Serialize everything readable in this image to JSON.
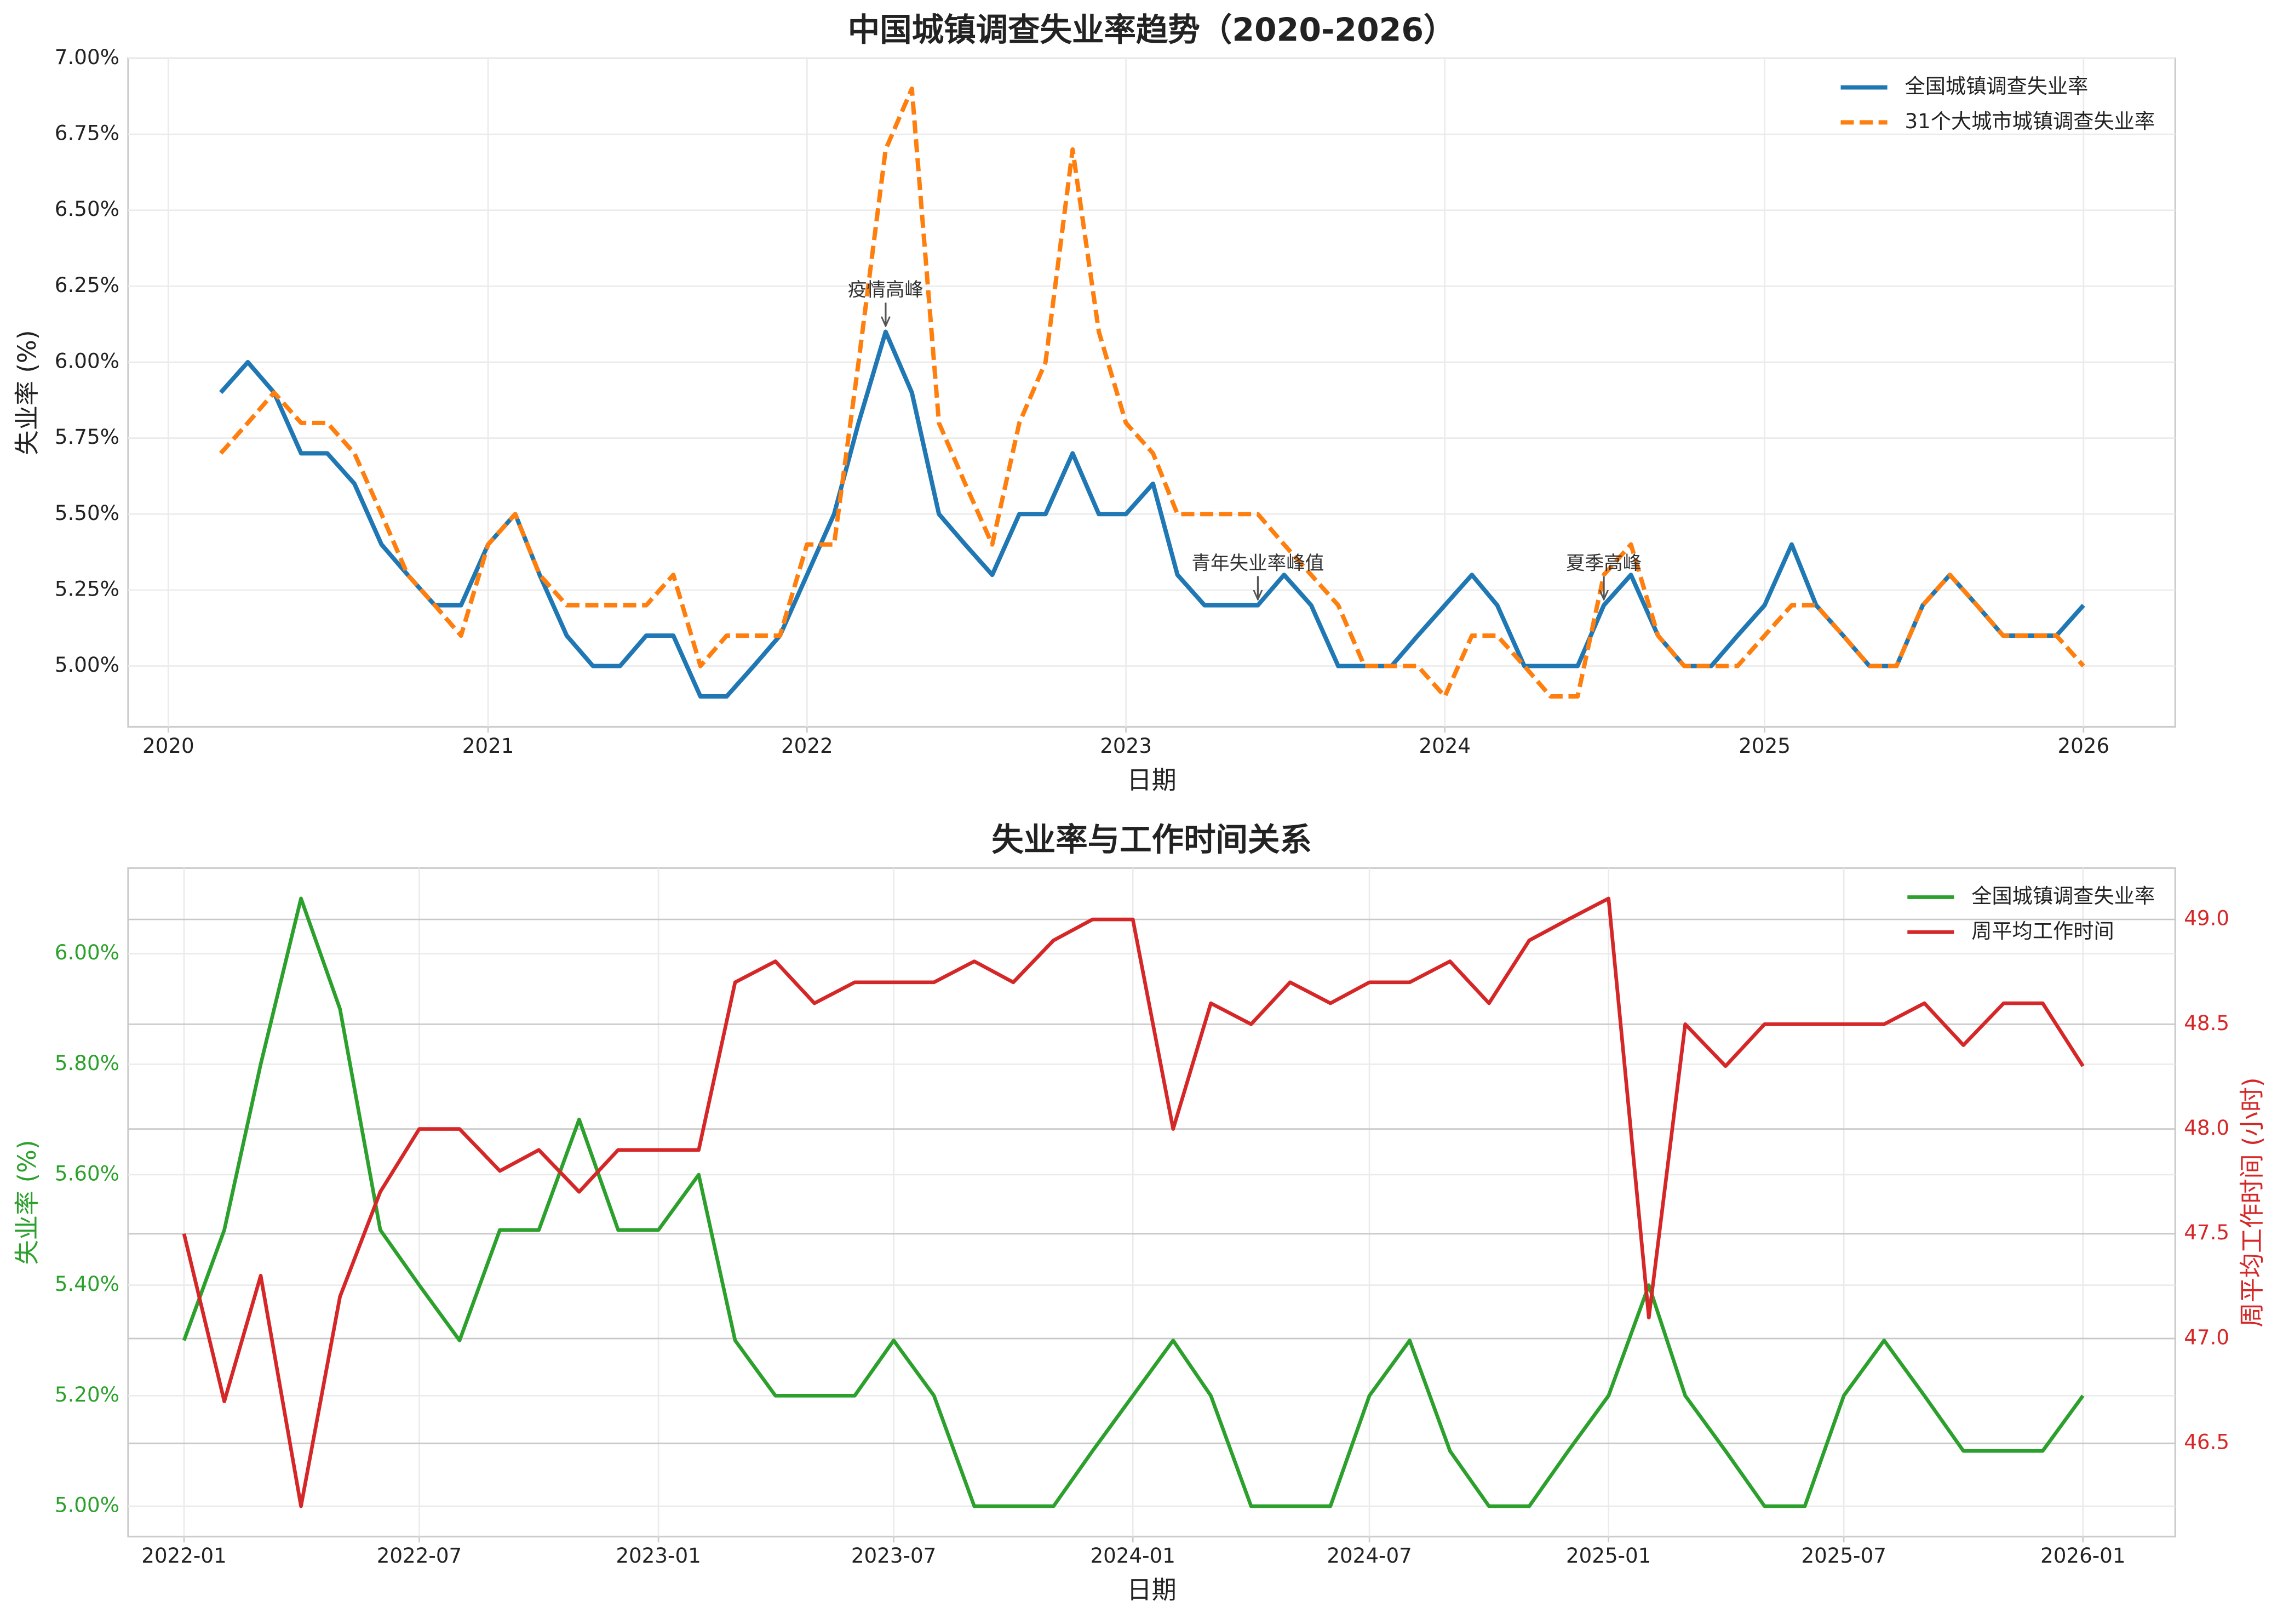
{
  "chart_data": [
    {
      "type": "line",
      "title": "中国城镇调查失业率趋势（2020-2026）",
      "xlabel": "日期",
      "ylabel": "失业率 (%)",
      "x": [
        "2020-03",
        "2020-04",
        "2020-05",
        "2020-06",
        "2020-07",
        "2020-08",
        "2020-09",
        "2020-10",
        "2020-11",
        "2020-12",
        "2021-01",
        "2021-02",
        "2021-03",
        "2021-04",
        "2021-05",
        "2021-06",
        "2021-07",
        "2021-08",
        "2021-09",
        "2021-10",
        "2021-11",
        "2021-12",
        "2022-01",
        "2022-02",
        "2022-03",
        "2022-04",
        "2022-05",
        "2022-06",
        "2022-07",
        "2022-08",
        "2022-09",
        "2022-10",
        "2022-11",
        "2022-12",
        "2023-01",
        "2023-02",
        "2023-03",
        "2023-04",
        "2023-05",
        "2023-06",
        "2023-07",
        "2023-08",
        "2023-09",
        "2023-10",
        "2023-11",
        "2023-12",
        "2024-01",
        "2024-02",
        "2024-03",
        "2024-04",
        "2024-05",
        "2024-06",
        "2024-07",
        "2024-08",
        "2024-09",
        "2024-10",
        "2024-11",
        "2024-12",
        "2025-01",
        "2025-02",
        "2025-03",
        "2025-04",
        "2025-05",
        "2025-06",
        "2025-07",
        "2025-08",
        "2025-09",
        "2025-10",
        "2025-11",
        "2025-12",
        "2026-01"
      ],
      "series": [
        {
          "name": "全国城镇调查失业率",
          "color": "#1f77b4",
          "linestyle": "solid",
          "values": [
            5.9,
            6.0,
            5.9,
            5.7,
            5.7,
            5.6,
            5.4,
            5.3,
            5.2,
            5.2,
            5.4,
            5.5,
            5.3,
            5.1,
            5.0,
            5.0,
            5.1,
            5.1,
            4.9,
            4.9,
            5.0,
            5.1,
            5.3,
            5.5,
            5.8,
            6.1,
            5.9,
            5.5,
            5.4,
            5.3,
            5.5,
            5.5,
            5.7,
            5.5,
            5.5,
            5.6,
            5.3,
            5.2,
            5.2,
            5.2,
            5.3,
            5.2,
            5.0,
            5.0,
            5.0,
            5.1,
            5.2,
            5.3,
            5.2,
            5.0,
            5.0,
            5.0,
            5.2,
            5.3,
            5.1,
            5.0,
            5.0,
            5.1,
            5.2,
            5.4,
            5.2,
            5.1,
            5.0,
            5.0,
            5.2,
            5.3,
            5.2,
            5.1,
            5.1,
            5.1,
            5.2
          ]
        },
        {
          "name": "31个大城市城镇调查失业率",
          "color": "#ff7f0e",
          "linestyle": "dashed",
          "values": [
            5.7,
            5.8,
            5.9,
            5.8,
            5.8,
            5.7,
            5.5,
            5.3,
            5.2,
            5.1,
            5.4,
            5.5,
            5.3,
            5.2,
            5.2,
            5.2,
            5.2,
            5.3,
            5.0,
            5.1,
            5.1,
            5.1,
            5.4,
            5.4,
            6.0,
            6.7,
            6.9,
            5.8,
            5.6,
            5.4,
            5.8,
            6.0,
            6.7,
            6.1,
            5.8,
            5.7,
            5.5,
            5.5,
            5.5,
            5.5,
            5.4,
            5.3,
            5.2,
            5.0,
            5.0,
            5.0,
            4.9,
            5.1,
            5.1,
            5.0,
            4.9,
            4.9,
            5.3,
            5.4,
            5.1,
            5.0,
            5.0,
            5.0,
            5.1,
            5.2,
            5.2,
            5.1,
            5.0,
            5.0,
            5.2,
            5.3,
            5.2,
            5.1,
            5.1,
            5.1,
            5.0
          ]
        }
      ],
      "xlim": [
        "2019-11-16",
        "2026-04-16"
      ],
      "xticks": [
        {
          "value": "2020-01",
          "label": "2020"
        },
        {
          "value": "2021-01",
          "label": "2021"
        },
        {
          "value": "2022-01",
          "label": "2022"
        },
        {
          "value": "2023-01",
          "label": "2023"
        },
        {
          "value": "2024-01",
          "label": "2024"
        },
        {
          "value": "2025-01",
          "label": "2025"
        },
        {
          "value": "2026-01",
          "label": "2026"
        }
      ],
      "ylim": [
        4.8,
        7.0
      ],
      "yticks": [
        {
          "value": 5.0,
          "label": "5.00%"
        },
        {
          "value": 5.25,
          "label": "5.25%"
        },
        {
          "value": 5.5,
          "label": "5.50%"
        },
        {
          "value": 5.75,
          "label": "5.75%"
        },
        {
          "value": 6.0,
          "label": "6.00%"
        },
        {
          "value": 6.25,
          "label": "6.25%"
        },
        {
          "value": 6.5,
          "label": "6.50%"
        },
        {
          "value": 6.75,
          "label": "6.75%"
        },
        {
          "value": 7.0,
          "label": "7.00%"
        }
      ],
      "grid": true,
      "legend": "upper right",
      "annotations": [
        {
          "text": "疫情高峰",
          "x": "2022-04",
          "y": 6.1
        },
        {
          "text": "青年失业率峰值",
          "x": "2023-06",
          "y": 5.2
        },
        {
          "text": "夏季高峰",
          "x": "2024-07",
          "y": 5.2
        }
      ]
    },
    {
      "type": "line",
      "title": "失业率与工作时间关系",
      "xlabel": "日期",
      "ylabel": "失业率 (%)",
      "y2label": "周平均工作时间 (小时)",
      "x": [
        "2022-01",
        "2022-02",
        "2022-03",
        "2022-04",
        "2022-05",
        "2022-06",
        "2022-07",
        "2022-08",
        "2022-09",
        "2022-10",
        "2022-11",
        "2022-12",
        "2023-01",
        "2023-02",
        "2023-03",
        "2023-04",
        "2023-05",
        "2023-06",
        "2023-07",
        "2023-08",
        "2023-09",
        "2023-10",
        "2023-11",
        "2023-12",
        "2024-01",
        "2024-02",
        "2024-03",
        "2024-04",
        "2024-05",
        "2024-06",
        "2024-07",
        "2024-08",
        "2024-09",
        "2024-10",
        "2024-11",
        "2024-12",
        "2025-01",
        "2025-02",
        "2025-03",
        "2025-04",
        "2025-05",
        "2025-06",
        "2025-07",
        "2025-08",
        "2025-09",
        "2025-10",
        "2025-11",
        "2025-12",
        "2026-01"
      ],
      "series": [
        {
          "name": "全国城镇调查失业率",
          "color": "#2ca02c",
          "axis": "y",
          "values": [
            5.3,
            5.5,
            5.8,
            6.1,
            5.9,
            5.5,
            5.4,
            5.3,
            5.5,
            5.5,
            5.7,
            5.5,
            5.5,
            5.6,
            5.3,
            5.2,
            5.2,
            5.2,
            5.3,
            5.2,
            5.0,
            5.0,
            5.0,
            5.1,
            5.2,
            5.3,
            5.2,
            5.0,
            5.0,
            5.0,
            5.2,
            5.3,
            5.1,
            5.0,
            5.0,
            5.1,
            5.2,
            5.4,
            5.2,
            5.1,
            5.0,
            5.0,
            5.2,
            5.3,
            5.2,
            5.1,
            5.1,
            5.1,
            5.2
          ]
        },
        {
          "name": "周平均工作时间",
          "color": "#d62728",
          "axis": "y2",
          "values": [
            47.5,
            46.7,
            47.3,
            46.2,
            47.2,
            47.7,
            48.0,
            48.0,
            47.8,
            47.9,
            47.7,
            47.9,
            47.9,
            47.9,
            48.7,
            48.8,
            48.6,
            48.7,
            48.7,
            48.7,
            48.8,
            48.7,
            48.9,
            49.0,
            49.0,
            48.0,
            48.6,
            48.5,
            48.7,
            48.6,
            48.7,
            48.7,
            48.8,
            48.6,
            48.9,
            49.0,
            49.1,
            47.1,
            48.5,
            48.3,
            48.5,
            48.5,
            48.5,
            48.5,
            48.6,
            48.4,
            48.6,
            48.6,
            48.3
          ]
        }
      ],
      "xlim": [
        "2021-11-19",
        "2026-03-13"
      ],
      "xticks": [
        "2022-01",
        "2022-07",
        "2023-01",
        "2023-07",
        "2024-01",
        "2024-07",
        "2025-01",
        "2025-07",
        "2026-01"
      ],
      "ylim": [
        4.945,
        6.155
      ],
      "yticks": [
        {
          "value": 5.0,
          "label": "5.00%"
        },
        {
          "value": 5.2,
          "label": "5.20%"
        },
        {
          "value": 5.4,
          "label": "5.40%"
        },
        {
          "value": 5.6,
          "label": "5.60%"
        },
        {
          "value": 5.8,
          "label": "5.80%"
        },
        {
          "value": 6.0,
          "label": "6.00%"
        }
      ],
      "y2lim": [
        46.055,
        49.245
      ],
      "y2ticks": [
        46.5,
        {
          "value": 47.0,
          "label": "47.0"
        },
        47.5,
        {
          "value": 48.0,
          "label": "48.0"
        },
        48.5,
        {
          "value": 49.0,
          "label": "49.0"
        }
      ],
      "grid": true,
      "legend": "upper right"
    }
  ]
}
